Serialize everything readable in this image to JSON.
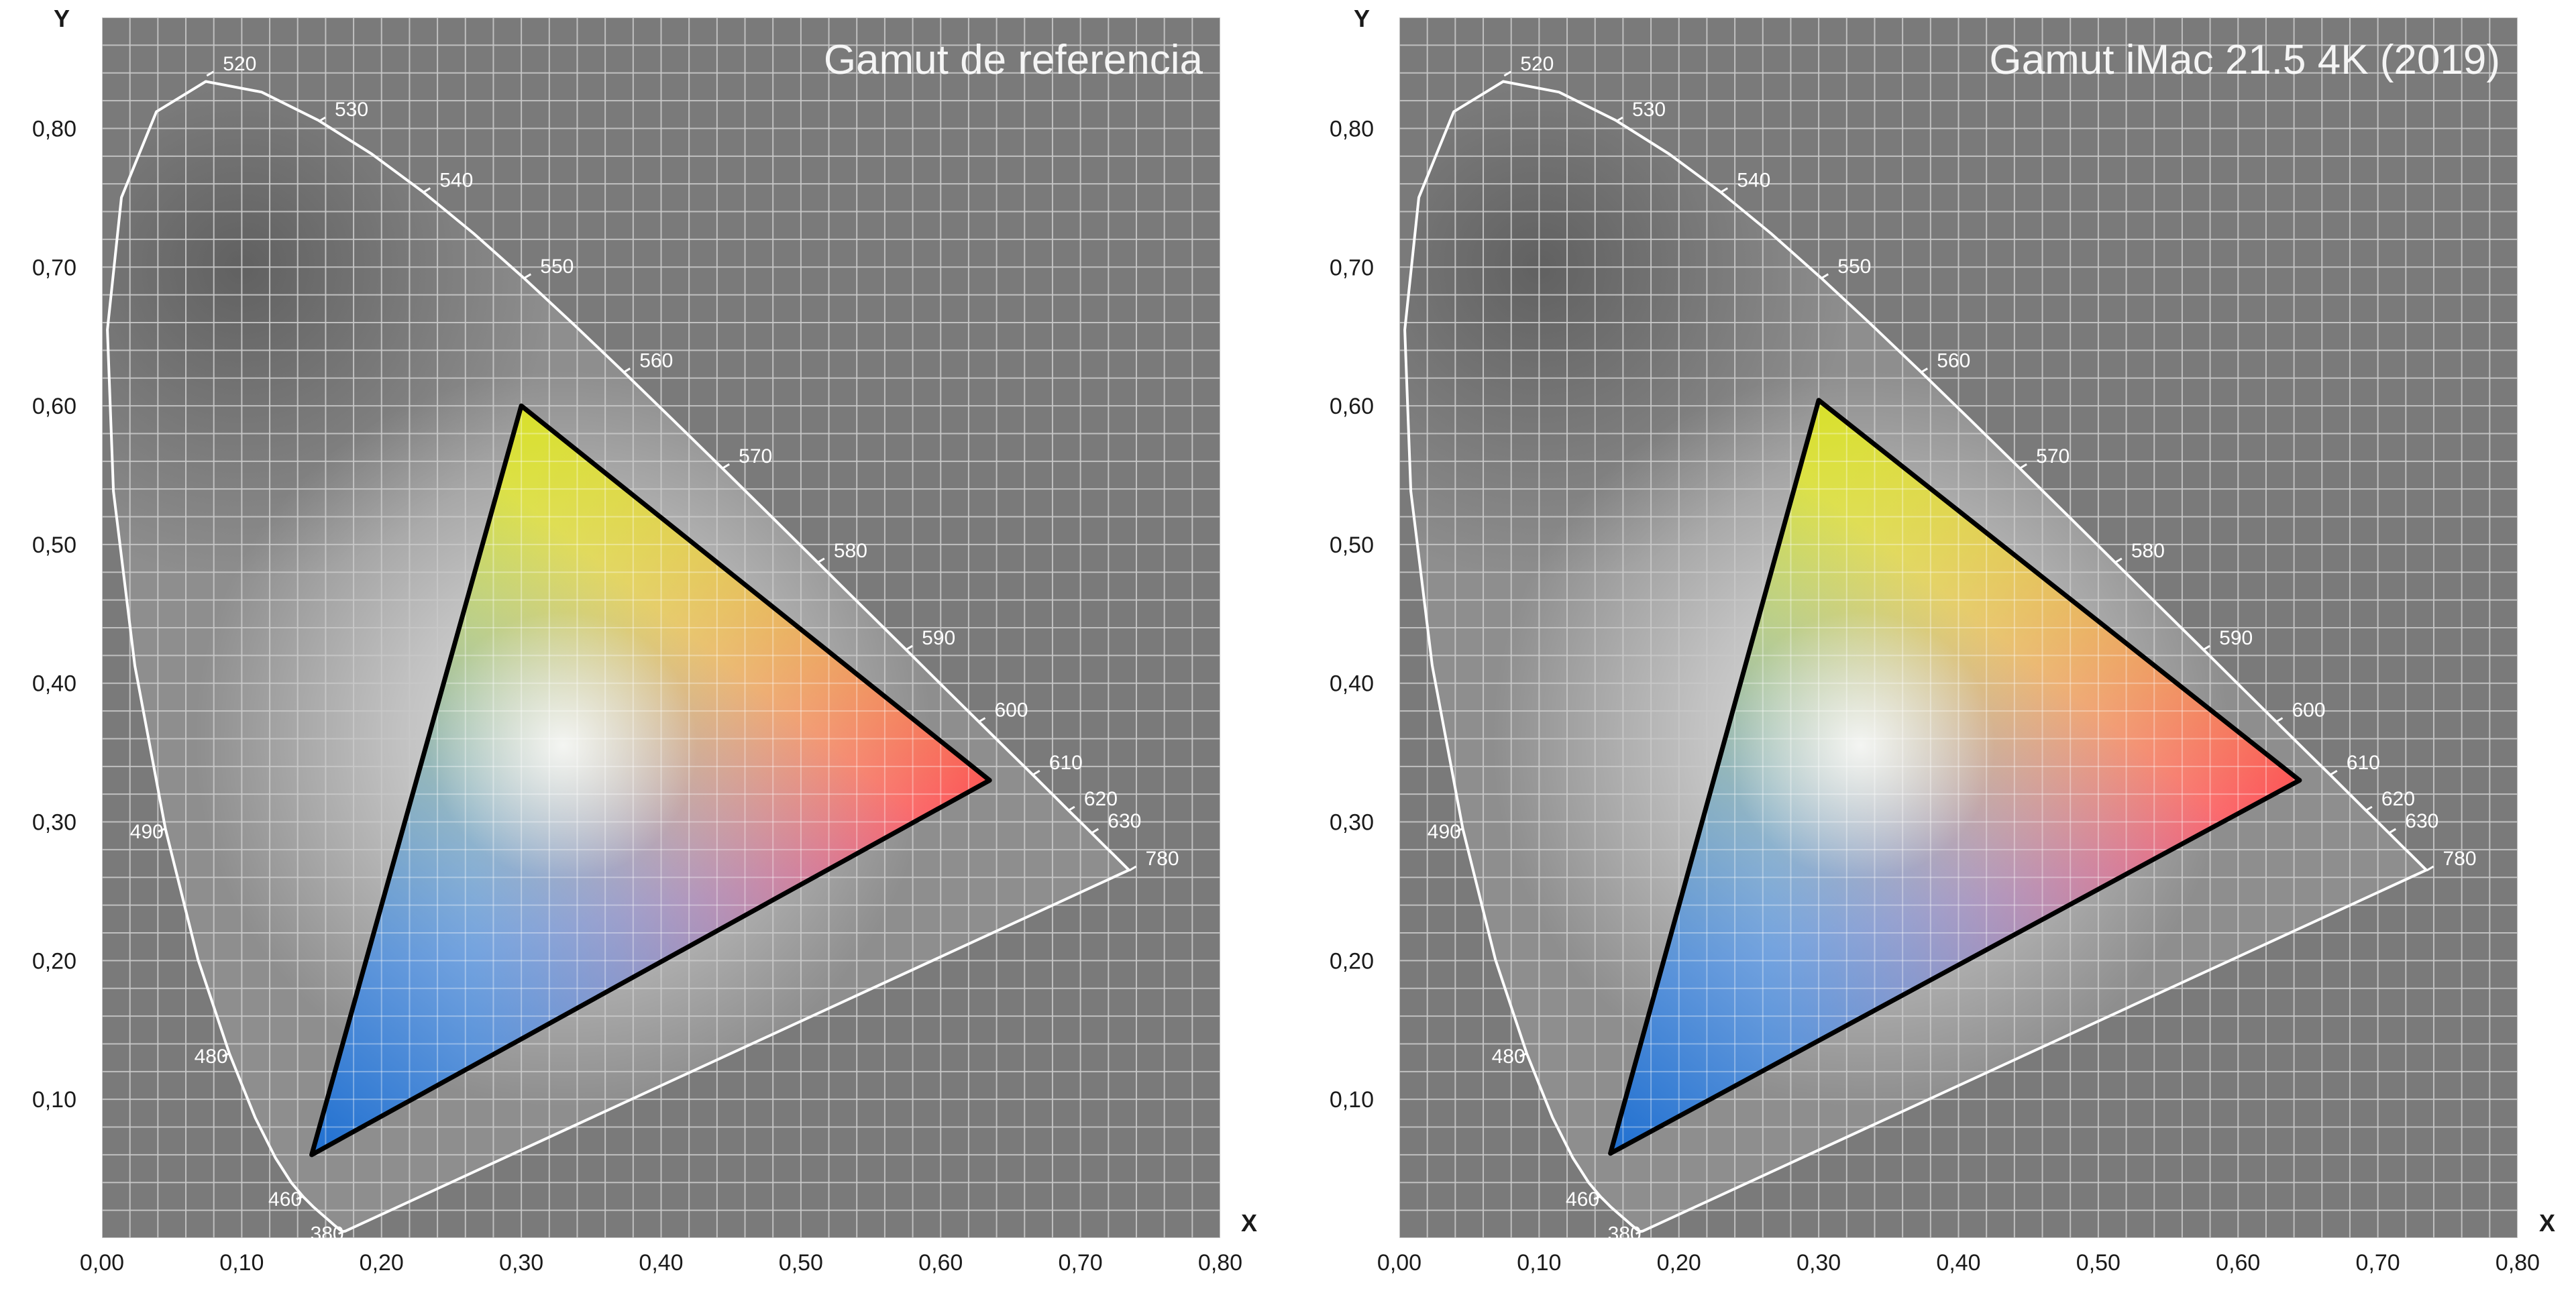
{
  "chart_data": [
    {
      "type": "scatter",
      "title": "Gamut de referencia",
      "xlabel": "X",
      "ylabel": "Y",
      "xlim": [
        0,
        0.8
      ],
      "ylim": [
        0,
        0.88
      ],
      "x_ticks": [
        "0,00",
        "0,10",
        "0,20",
        "0,30",
        "0,40",
        "0,50",
        "0,60",
        "0,70",
        "0,80"
      ],
      "y_ticks": [
        "0,10",
        "0,20",
        "0,30",
        "0,40",
        "0,50",
        "0,60",
        "0,70",
        "0,80"
      ],
      "gamut_triangle": {
        "red": [
          0.635,
          0.33
        ],
        "green": [
          0.3,
          0.6
        ],
        "blue": [
          0.15,
          0.06
        ]
      },
      "wavelength_labels": [
        {
          "nm": "520",
          "x": 0.075,
          "y": 0.838
        },
        {
          "nm": "530",
          "x": 0.155,
          "y": 0.805
        },
        {
          "nm": "540",
          "x": 0.23,
          "y": 0.754
        },
        {
          "nm": "550",
          "x": 0.302,
          "y": 0.692
        },
        {
          "nm": "560",
          "x": 0.373,
          "y": 0.624
        },
        {
          "nm": "570",
          "x": 0.444,
          "y": 0.555
        },
        {
          "nm": "580",
          "x": 0.512,
          "y": 0.487
        },
        {
          "nm": "590",
          "x": 0.575,
          "y": 0.424
        },
        {
          "nm": "600",
          "x": 0.627,
          "y": 0.372
        },
        {
          "nm": "610",
          "x": 0.666,
          "y": 0.334
        },
        {
          "nm": "620",
          "x": 0.691,
          "y": 0.308
        },
        {
          "nm": "630",
          "x": 0.708,
          "y": 0.292
        },
        {
          "nm": "780",
          "x": 0.735,
          "y": 0.265
        },
        {
          "nm": "490",
          "x": 0.045,
          "y": 0.295
        },
        {
          "nm": "480",
          "x": 0.091,
          "y": 0.133
        },
        {
          "nm": "460",
          "x": 0.144,
          "y": 0.03
        },
        {
          "nm": "380",
          "x": 0.174,
          "y": 0.005
        }
      ],
      "grid": true
    },
    {
      "type": "scatter",
      "title": "Gamut iMac 21.5 4K (2019)",
      "xlabel": "X",
      "ylabel": "Y",
      "xlim": [
        0,
        0.8
      ],
      "ylim": [
        0,
        0.88
      ],
      "x_ticks": [
        "0,00",
        "0,10",
        "0,20",
        "0,30",
        "0,40",
        "0,50",
        "0,60",
        "0,70",
        "0,80"
      ],
      "y_ticks": [
        "0,10",
        "0,20",
        "0,30",
        "0,40",
        "0,50",
        "0,60",
        "0,70",
        "0,80"
      ],
      "gamut_triangle": {
        "red": [
          0.644,
          0.33
        ],
        "green": [
          0.3,
          0.604
        ],
        "blue": [
          0.151,
          0.061
        ]
      },
      "wavelength_labels": [
        {
          "nm": "520",
          "x": 0.075,
          "y": 0.838
        },
        {
          "nm": "530",
          "x": 0.155,
          "y": 0.805
        },
        {
          "nm": "540",
          "x": 0.23,
          "y": 0.754
        },
        {
          "nm": "550",
          "x": 0.302,
          "y": 0.692
        },
        {
          "nm": "560",
          "x": 0.373,
          "y": 0.624
        },
        {
          "nm": "570",
          "x": 0.444,
          "y": 0.555
        },
        {
          "nm": "580",
          "x": 0.512,
          "y": 0.487
        },
        {
          "nm": "590",
          "x": 0.575,
          "y": 0.424
        },
        {
          "nm": "600",
          "x": 0.627,
          "y": 0.372
        },
        {
          "nm": "610",
          "x": 0.666,
          "y": 0.334
        },
        {
          "nm": "620",
          "x": 0.691,
          "y": 0.308
        },
        {
          "nm": "630",
          "x": 0.708,
          "y": 0.292
        },
        {
          "nm": "780",
          "x": 0.735,
          "y": 0.265
        },
        {
          "nm": "490",
          "x": 0.045,
          "y": 0.295
        },
        {
          "nm": "480",
          "x": 0.091,
          "y": 0.133
        },
        {
          "nm": "460",
          "x": 0.144,
          "y": 0.03
        },
        {
          "nm": "380",
          "x": 0.174,
          "y": 0.005
        }
      ],
      "grid": true
    }
  ],
  "colors": {
    "plot_background": "#7a7a7a",
    "grid_line": "#c8c8c8",
    "locus_line": "#ffffff",
    "triangle_outline": "#000000",
    "primary_red": "#ff4a5a",
    "primary_green": "#d8e02a",
    "primary_blue": "#1f6fd0"
  }
}
